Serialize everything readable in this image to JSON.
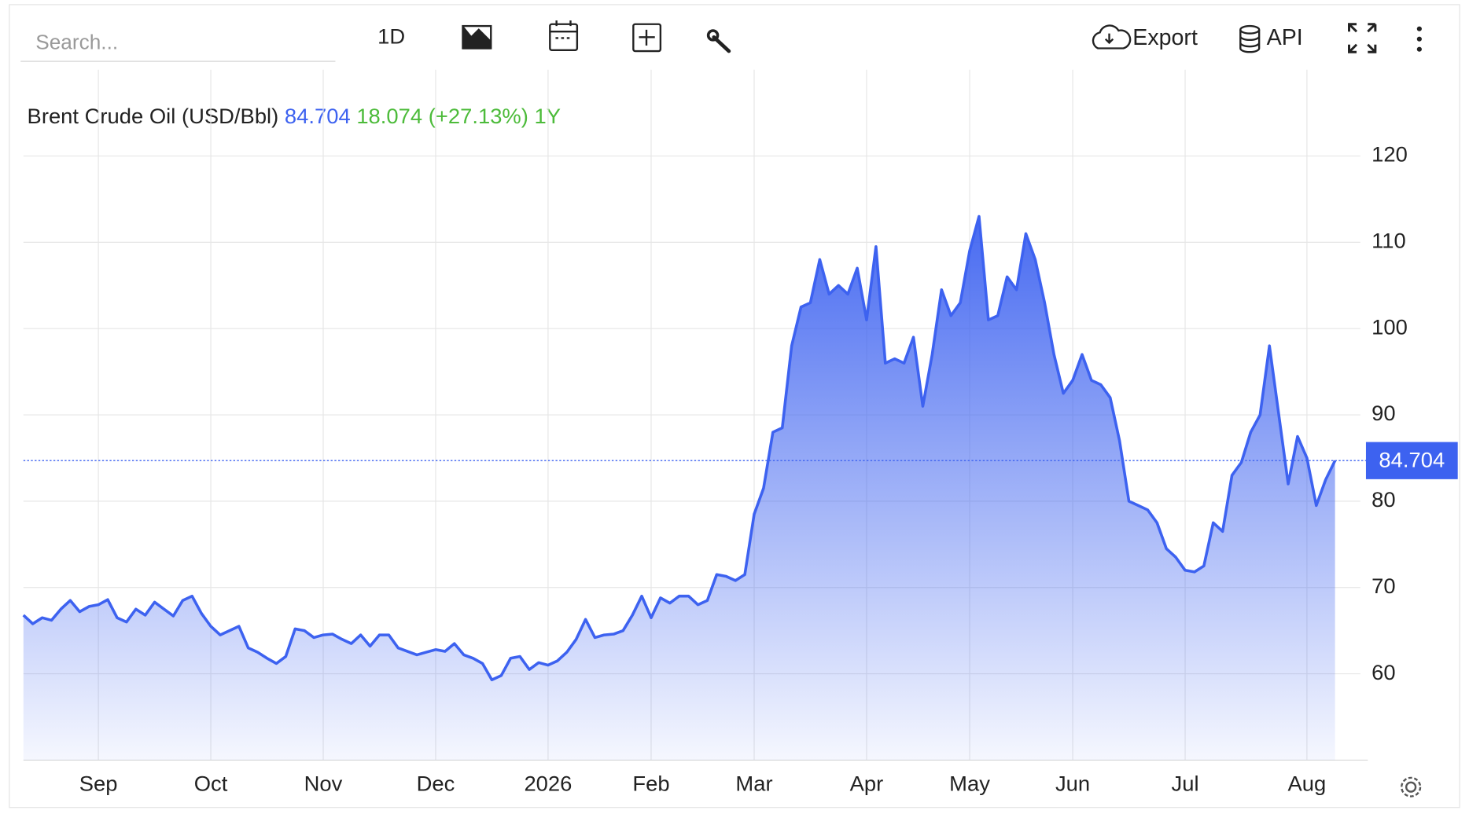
{
  "toolbar": {
    "search_placeholder": "Search...",
    "interval": "1D",
    "export": "Export",
    "api": "API"
  },
  "chart_data": {
    "type": "area",
    "title": "Brent Crude Oil (USD/Bbl)",
    "last": 84.704,
    "change": 18.074,
    "change_pct": "(+27.13%)",
    "period": "1Y",
    "color": "#3d62f0",
    "up_color": "#4cbb3a",
    "categories": [
      null,
      null,
      null,
      null,
      null,
      null,
      null,
      null,
      "Sep",
      null,
      null,
      null,
      null,
      null,
      null,
      null,
      null,
      null,
      null,
      null,
      "Oct",
      null,
      null,
      null,
      null,
      null,
      null,
      null,
      null,
      null,
      null,
      null,
      "Nov",
      null,
      null,
      null,
      null,
      null,
      null,
      null,
      null,
      null,
      null,
      null,
      "Dec",
      null,
      null,
      null,
      null,
      null,
      null,
      null,
      null,
      null,
      null,
      null,
      "2026",
      null,
      null,
      null,
      null,
      null,
      null,
      null,
      null,
      null,
      null,
      "Feb",
      null,
      null,
      null,
      null,
      null,
      null,
      null,
      null,
      null,
      null,
      "Mar",
      null,
      null,
      null,
      null,
      null,
      null,
      null,
      null,
      null,
      null,
      null,
      "Apr",
      null,
      null,
      null,
      null,
      null,
      null,
      null,
      null,
      null,
      null,
      "May",
      null,
      null,
      null,
      null,
      null,
      null,
      null,
      null,
      null,
      null,
      "Jun",
      null,
      null,
      null,
      null,
      null,
      null,
      null,
      null,
      null,
      null,
      null,
      "Jul",
      null,
      null,
      null,
      null,
      null,
      null,
      null,
      null,
      null,
      null,
      null,
      null,
      "Aug",
      null,
      null,
      null
    ],
    "values": [
      66.8,
      65.8,
      66.5,
      66.2,
      67.5,
      68.5,
      67.2,
      67.8,
      68,
      68.6,
      66.5,
      66,
      67.5,
      66.8,
      68.3,
      67.5,
      66.7,
      68.5,
      69,
      67,
      65.5,
      64.5,
      65,
      65.5,
      63,
      62.5,
      61.8,
      61.2,
      62,
      65.2,
      65,
      64.2,
      64.5,
      64.6,
      64,
      63.5,
      64.5,
      63.2,
      64.5,
      64.5,
      63,
      62.6,
      62.2,
      62.5,
      62.8,
      62.6,
      63.5,
      62.2,
      61.8,
      61.2,
      59.3,
      59.8,
      61.8,
      62,
      60.5,
      61.3,
      61,
      61.5,
      62.5,
      64,
      66.3,
      64.2,
      64.5,
      64.6,
      65,
      66.8,
      69,
      66.5,
      68.8,
      68.2,
      69,
      69,
      68,
      68.5,
      71.5,
      71.3,
      70.8,
      71.5,
      78.5,
      81.5,
      88,
      88.5,
      98,
      102.5,
      103,
      108,
      104,
      105,
      104,
      107,
      101,
      109.5,
      96,
      96.5,
      96,
      99,
      91,
      97,
      104.5,
      101.5,
      103,
      109,
      113,
      101,
      101.5,
      106,
      104.5,
      111,
      108,
      103,
      97,
      92.5,
      94,
      97,
      94,
      93.5,
      92,
      87,
      80,
      79.5,
      79,
      77.5,
      74.5,
      73.5,
      72,
      71.8,
      72.5,
      77.5,
      76.5,
      83,
      84.5,
      88,
      90,
      98,
      90,
      82,
      87.5,
      85,
      79.5,
      82.5,
      84.704
    ],
    "ylim": [
      50,
      130
    ],
    "yticks": [
      60,
      70,
      80,
      90,
      100,
      110,
      120
    ],
    "grid": true
  }
}
